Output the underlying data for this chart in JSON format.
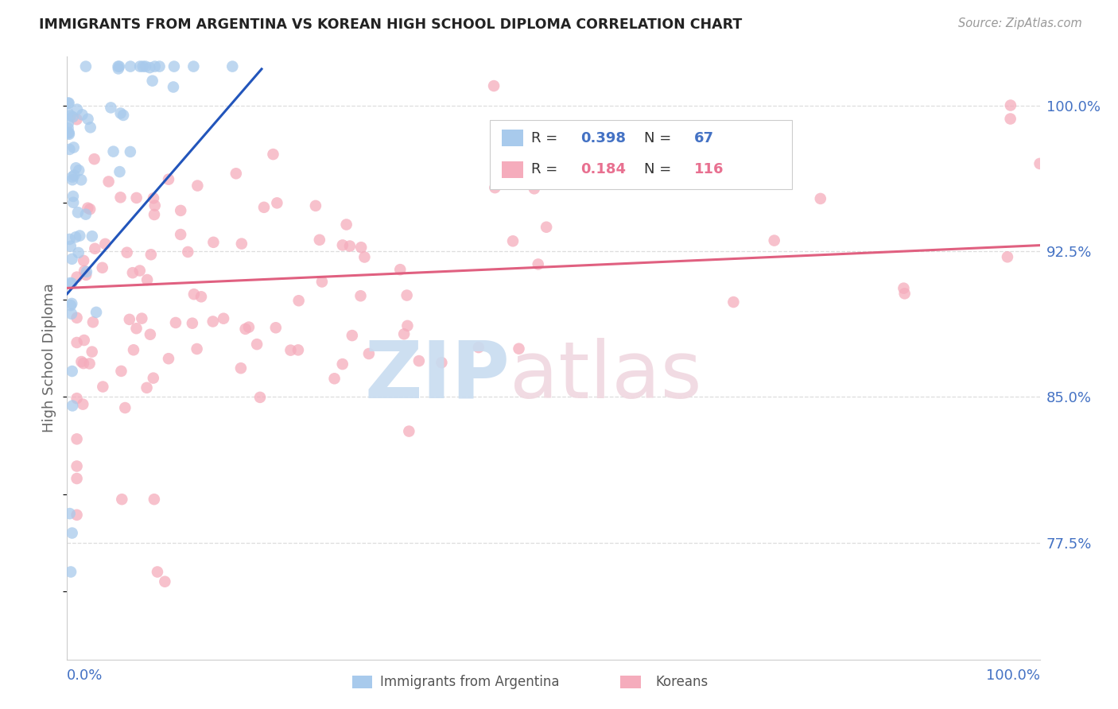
{
  "title": "IMMIGRANTS FROM ARGENTINA VS KOREAN HIGH SCHOOL DIPLOMA CORRELATION CHART",
  "source": "Source: ZipAtlas.com",
  "ylabel": "High School Diploma",
  "ytick_labels": [
    "77.5%",
    "85.0%",
    "92.5%",
    "100.0%"
  ],
  "ytick_values": [
    0.775,
    0.85,
    0.925,
    1.0
  ],
  "legend_label1": "Immigrants from Argentina",
  "legend_label2": "Koreans",
  "R1": "0.398",
  "N1": "67",
  "R2": "0.184",
  "N2": "116",
  "color_blue": "#A8CAEC",
  "color_pink": "#F5ACBC",
  "color_blue_line": "#2255BB",
  "color_pink_line": "#E06080",
  "color_blue_text": "#4472C4",
  "color_pink_text": "#E87090",
  "background_color": "#FFFFFF",
  "xmin": 0.0,
  "xmax": 1.0,
  "ymin": 0.715,
  "ymax": 1.025,
  "grid_color": "#DDDDDD",
  "watermark_zip_color": "#C8DCF0",
  "watermark_atlas_color": "#F0D8E0"
}
